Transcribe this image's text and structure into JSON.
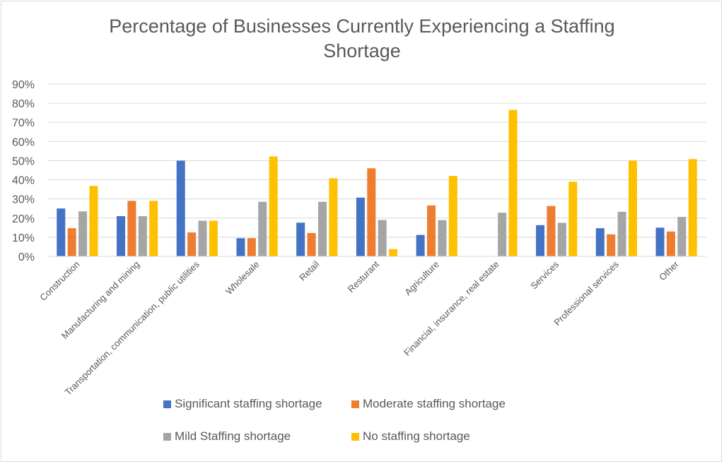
{
  "chart_data": {
    "type": "bar",
    "title": "Percentage of Businesses Currently Experiencing a Staffing Shortage",
    "title_lines": [
      "Percentage of Businesses Currently Experiencing a Staffing",
      "Shortage"
    ],
    "xlabel": "",
    "ylabel": "",
    "ylim": [
      0,
      0.9
    ],
    "yticks": [
      0,
      0.1,
      0.2,
      0.3,
      0.4,
      0.5,
      0.6,
      0.7,
      0.8,
      0.9
    ],
    "ytick_labels": [
      "0%",
      "10%",
      "20%",
      "30%",
      "40%",
      "50%",
      "60%",
      "70%",
      "80%",
      "90%"
    ],
    "grid": true,
    "legend_position": "bottom",
    "categories": [
      "Construction",
      "Manufacturing and mining",
      "Transportation, communication, public utilities",
      "Wholesale",
      "Retail",
      "Resturant",
      "Agriculture",
      "Financial, insurance, real estate",
      "Services",
      "Professional services",
      "Other"
    ],
    "series": [
      {
        "name": "Significant staffing shortage",
        "color": "#4472c4",
        "values": [
          0.25,
          0.21,
          0.5,
          0.095,
          0.176,
          0.307,
          0.112,
          0.0,
          0.163,
          0.147,
          0.15
        ]
      },
      {
        "name": "Moderate staffing shortage",
        "color": "#ed7d31",
        "values": [
          0.147,
          0.29,
          0.125,
          0.095,
          0.122,
          0.46,
          0.266,
          0.0,
          0.263,
          0.115,
          0.13
        ]
      },
      {
        "name": "Mild Staffing shortage",
        "color": "#a5a5a5",
        "values": [
          0.235,
          0.21,
          0.186,
          0.285,
          0.285,
          0.19,
          0.189,
          0.228,
          0.175,
          0.233,
          0.206
        ]
      },
      {
        "name": "No staffing shortage",
        "color": "#ffc000",
        "values": [
          0.368,
          0.29,
          0.186,
          0.522,
          0.408,
          0.038,
          0.42,
          0.765,
          0.39,
          0.5,
          0.508
        ]
      }
    ]
  }
}
